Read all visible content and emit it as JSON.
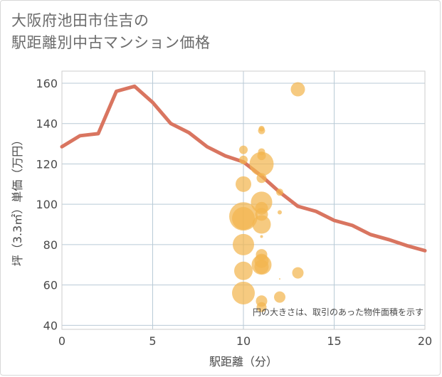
{
  "title_lines": [
    "大阪府池田市住吉の",
    "駅距離別中古マンション価格"
  ],
  "colors": {
    "line": "#d97560",
    "bubble": "#f2b54f",
    "grid": "#b9cad6",
    "plot_border": "#cccccc"
  },
  "chart_data": {
    "type": "scatter",
    "title": "大阪府池田市住吉の駅距離別中古マンション価格",
    "xlabel": "駅距離（分）",
    "ylabel": "坪（3.3㎡）単価（万円）",
    "xlim": [
      0,
      20
    ],
    "ylim": [
      38,
      166
    ],
    "xticks": [
      0,
      5,
      10,
      15,
      20
    ],
    "yticks": [
      40,
      60,
      80,
      100,
      120,
      140,
      160
    ],
    "grid": true,
    "annotation": "円の大きさは、取引のあった物件面積を示す",
    "series": [
      {
        "type": "line",
        "x": [
          0,
          1,
          2,
          3,
          4,
          5,
          6,
          7,
          8,
          9,
          10,
          11,
          12,
          13,
          14,
          15,
          16,
          17,
          18,
          19,
          20
        ],
        "y": [
          128.5,
          134,
          135,
          156,
          158.5,
          150.5,
          140,
          135.5,
          128.5,
          124,
          121,
          114,
          106,
          99,
          96.5,
          92,
          89.5,
          85,
          82.5,
          79.5,
          77
        ]
      },
      {
        "type": "bubble",
        "points": [
          {
            "x": 13,
            "y": 157,
            "size": 10
          },
          {
            "x": 11,
            "y": 137.5,
            "size": 4
          },
          {
            "x": 11,
            "y": 136.5,
            "size": 5
          },
          {
            "x": 10,
            "y": 127,
            "size": 6
          },
          {
            "x": 11,
            "y": 126,
            "size": 5
          },
          {
            "x": 11,
            "y": 124,
            "size": 6
          },
          {
            "x": 10,
            "y": 122,
            "size": 6
          },
          {
            "x": 11,
            "y": 120,
            "size": 17
          },
          {
            "x": 11,
            "y": 113,
            "size": 7
          },
          {
            "x": 10,
            "y": 110,
            "size": 11
          },
          {
            "x": 12,
            "y": 106,
            "size": 5
          },
          {
            "x": 11,
            "y": 101,
            "size": 15
          },
          {
            "x": 11,
            "y": 98,
            "size": 9
          },
          {
            "x": 12,
            "y": 96,
            "size": 3
          },
          {
            "x": 11,
            "y": 95,
            "size": 9
          },
          {
            "x": 10,
            "y": 94,
            "size": 20
          },
          {
            "x": 10,
            "y": 93,
            "size": 16
          },
          {
            "x": 11,
            "y": 90,
            "size": 13
          },
          {
            "x": 11,
            "y": 84,
            "size": 2
          },
          {
            "x": 10,
            "y": 80,
            "size": 15
          },
          {
            "x": 11,
            "y": 75,
            "size": 8
          },
          {
            "x": 11,
            "y": 72,
            "size": 10
          },
          {
            "x": 11,
            "y": 70,
            "size": 14
          },
          {
            "x": 11,
            "y": 69,
            "size": 10
          },
          {
            "x": 10,
            "y": 67,
            "size": 13
          },
          {
            "x": 13,
            "y": 66,
            "size": 8
          },
          {
            "x": 12,
            "y": 63,
            "size": 1
          },
          {
            "x": 10,
            "y": 56,
            "size": 16
          },
          {
            "x": 12,
            "y": 54,
            "size": 8
          },
          {
            "x": 11,
            "y": 52,
            "size": 8
          },
          {
            "x": 11,
            "y": 49,
            "size": 7
          }
        ]
      }
    ]
  }
}
